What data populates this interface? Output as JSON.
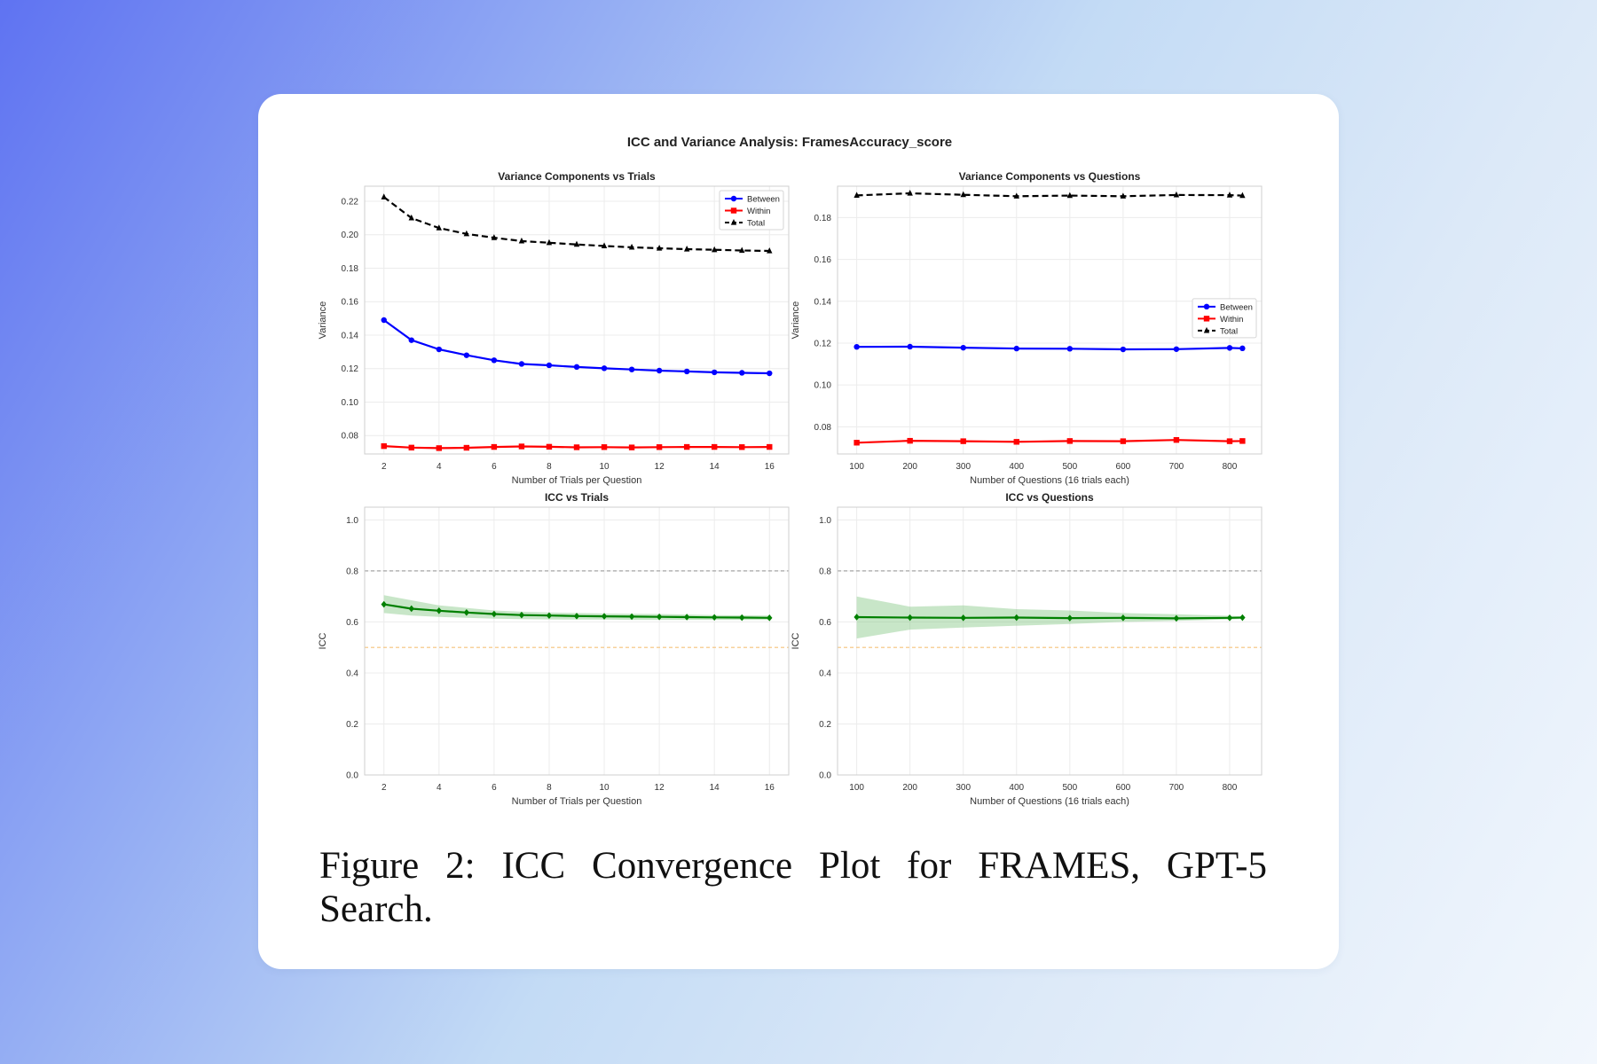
{
  "figure_title": "ICC and Variance Analysis: FramesAccuracy_score",
  "caption": "Figure 2: ICC Convergence Plot for FRAMES, GPT-5 Search.",
  "colors": {
    "between": "#0000ff",
    "within": "#ff0000",
    "total": "#000000",
    "icc": "#008000",
    "band": "#84c884"
  },
  "chart_data": [
    {
      "type": "line",
      "title": "Variance Components vs Trials",
      "xlabel": "Number of Trials per Question",
      "ylabel": "Variance",
      "x": [
        2,
        3,
        4,
        5,
        6,
        7,
        8,
        9,
        10,
        11,
        12,
        13,
        14,
        15,
        16
      ],
      "xticks": [
        2,
        4,
        6,
        8,
        10,
        12,
        14,
        16
      ],
      "xlim": [
        1.3,
        16.7
      ],
      "yticks": [
        0.08,
        0.1,
        0.12,
        0.14,
        0.16,
        0.18,
        0.2,
        0.22
      ],
      "ylim": [
        0.069,
        0.229
      ],
      "grid": true,
      "legend": "top-right",
      "series": [
        {
          "name": "Between",
          "marker": "circle",
          "dash": false,
          "color": "#0000ff",
          "values": [
            0.149,
            0.137,
            0.1315,
            0.128,
            0.125,
            0.1228,
            0.122,
            0.121,
            0.1202,
            0.1195,
            0.1188,
            0.1183,
            0.1178,
            0.1175,
            0.1172
          ]
        },
        {
          "name": "Within",
          "marker": "square",
          "dash": false,
          "color": "#ff0000",
          "values": [
            0.0737,
            0.0728,
            0.0725,
            0.0727,
            0.0732,
            0.0735,
            0.0733,
            0.073,
            0.0731,
            0.0729,
            0.0731,
            0.0732,
            0.0732,
            0.0731,
            0.0732
          ]
        },
        {
          "name": "Total",
          "marker": "triangle",
          "dash": true,
          "color": "#000000",
          "values": [
            0.2225,
            0.21,
            0.204,
            0.2005,
            0.1982,
            0.1962,
            0.1952,
            0.1942,
            0.1933,
            0.1925,
            0.1919,
            0.1914,
            0.191,
            0.1906,
            0.1903
          ]
        }
      ]
    },
    {
      "type": "line",
      "title": "Variance Components vs Questions",
      "xlabel": "Number of Questions (16 trials each)",
      "ylabel": "Variance",
      "x": [
        100,
        200,
        300,
        400,
        500,
        600,
        700,
        800,
        824
      ],
      "xticks": [
        100,
        200,
        300,
        400,
        500,
        600,
        700,
        800
      ],
      "xlim": [
        64,
        860
      ],
      "yticks": [
        0.08,
        0.1,
        0.12,
        0.14,
        0.16,
        0.18
      ],
      "ylim": [
        0.067,
        0.195
      ],
      "grid": true,
      "legend": "center-right",
      "series": [
        {
          "name": "Between",
          "marker": "circle",
          "dash": false,
          "color": "#0000ff",
          "values": [
            0.1182,
            0.1183,
            0.1178,
            0.1174,
            0.1173,
            0.117,
            0.1171,
            0.1177,
            0.1175
          ]
        },
        {
          "name": "Within",
          "marker": "square",
          "dash": false,
          "color": "#ff0000",
          "values": [
            0.0724,
            0.0733,
            0.0731,
            0.0728,
            0.0732,
            0.0731,
            0.0737,
            0.0731,
            0.0732
          ]
        },
        {
          "name": "Total",
          "marker": "triangle",
          "dash": true,
          "color": "#000000",
          "values": [
            0.1906,
            0.1916,
            0.1909,
            0.1902,
            0.1905,
            0.1902,
            0.1908,
            0.1907,
            0.1905
          ]
        }
      ]
    },
    {
      "type": "line",
      "title": "ICC vs Trials",
      "xlabel": "Number of Trials per Question",
      "ylabel": "ICC",
      "x": [
        2,
        3,
        4,
        5,
        6,
        7,
        8,
        9,
        10,
        11,
        12,
        13,
        14,
        15,
        16
      ],
      "xticks": [
        2,
        4,
        6,
        8,
        10,
        12,
        14,
        16
      ],
      "xlim": [
        1.3,
        16.7
      ],
      "yticks": [
        0.0,
        0.2,
        0.4,
        0.6,
        0.8,
        1.0
      ],
      "ylim": [
        0.0,
        1.05
      ],
      "grid": true,
      "reference_lines": [
        {
          "y": 0.8,
          "color": "#a6a6a6"
        },
        {
          "y": 0.5,
          "color": "#f5c27a"
        }
      ],
      "series": [
        {
          "name": "ICC",
          "marker": "diamond",
          "dash": false,
          "color": "#008000",
          "values": [
            0.669,
            0.652,
            0.644,
            0.637,
            0.631,
            0.627,
            0.625,
            0.623,
            0.622,
            0.621,
            0.62,
            0.619,
            0.618,
            0.617,
            0.616
          ],
          "ci_lower": [
            0.635,
            0.625,
            0.62,
            0.616,
            0.613,
            0.611,
            0.61,
            0.609,
            0.609,
            0.608,
            0.608,
            0.608,
            0.608,
            0.608,
            0.608
          ],
          "ci_upper": [
            0.705,
            0.685,
            0.665,
            0.655,
            0.645,
            0.64,
            0.637,
            0.635,
            0.633,
            0.632,
            0.631,
            0.629,
            0.627,
            0.626,
            0.625
          ]
        }
      ]
    },
    {
      "type": "line",
      "title": "ICC vs Questions",
      "xlabel": "Number of Questions (16 trials each)",
      "ylabel": "ICC",
      "x": [
        100,
        200,
        300,
        400,
        500,
        600,
        700,
        800,
        824
      ],
      "xticks": [
        100,
        200,
        300,
        400,
        500,
        600,
        700,
        800
      ],
      "xlim": [
        64,
        860
      ],
      "yticks": [
        0.0,
        0.2,
        0.4,
        0.6,
        0.8,
        1.0
      ],
      "ylim": [
        0.0,
        1.05
      ],
      "grid": true,
      "reference_lines": [
        {
          "y": 0.8,
          "color": "#a6a6a6"
        },
        {
          "y": 0.5,
          "color": "#f5c27a"
        }
      ],
      "series": [
        {
          "name": "ICC",
          "marker": "diamond",
          "dash": false,
          "color": "#008000",
          "values": [
            0.619,
            0.617,
            0.616,
            0.617,
            0.615,
            0.616,
            0.614,
            0.616,
            0.617
          ],
          "ci_lower": [
            0.535,
            0.57,
            0.578,
            0.585,
            0.592,
            0.6,
            0.604,
            0.61,
            0.612
          ],
          "ci_upper": [
            0.7,
            0.66,
            0.665,
            0.65,
            0.645,
            0.635,
            0.63,
            0.624,
            0.622
          ]
        }
      ]
    }
  ]
}
